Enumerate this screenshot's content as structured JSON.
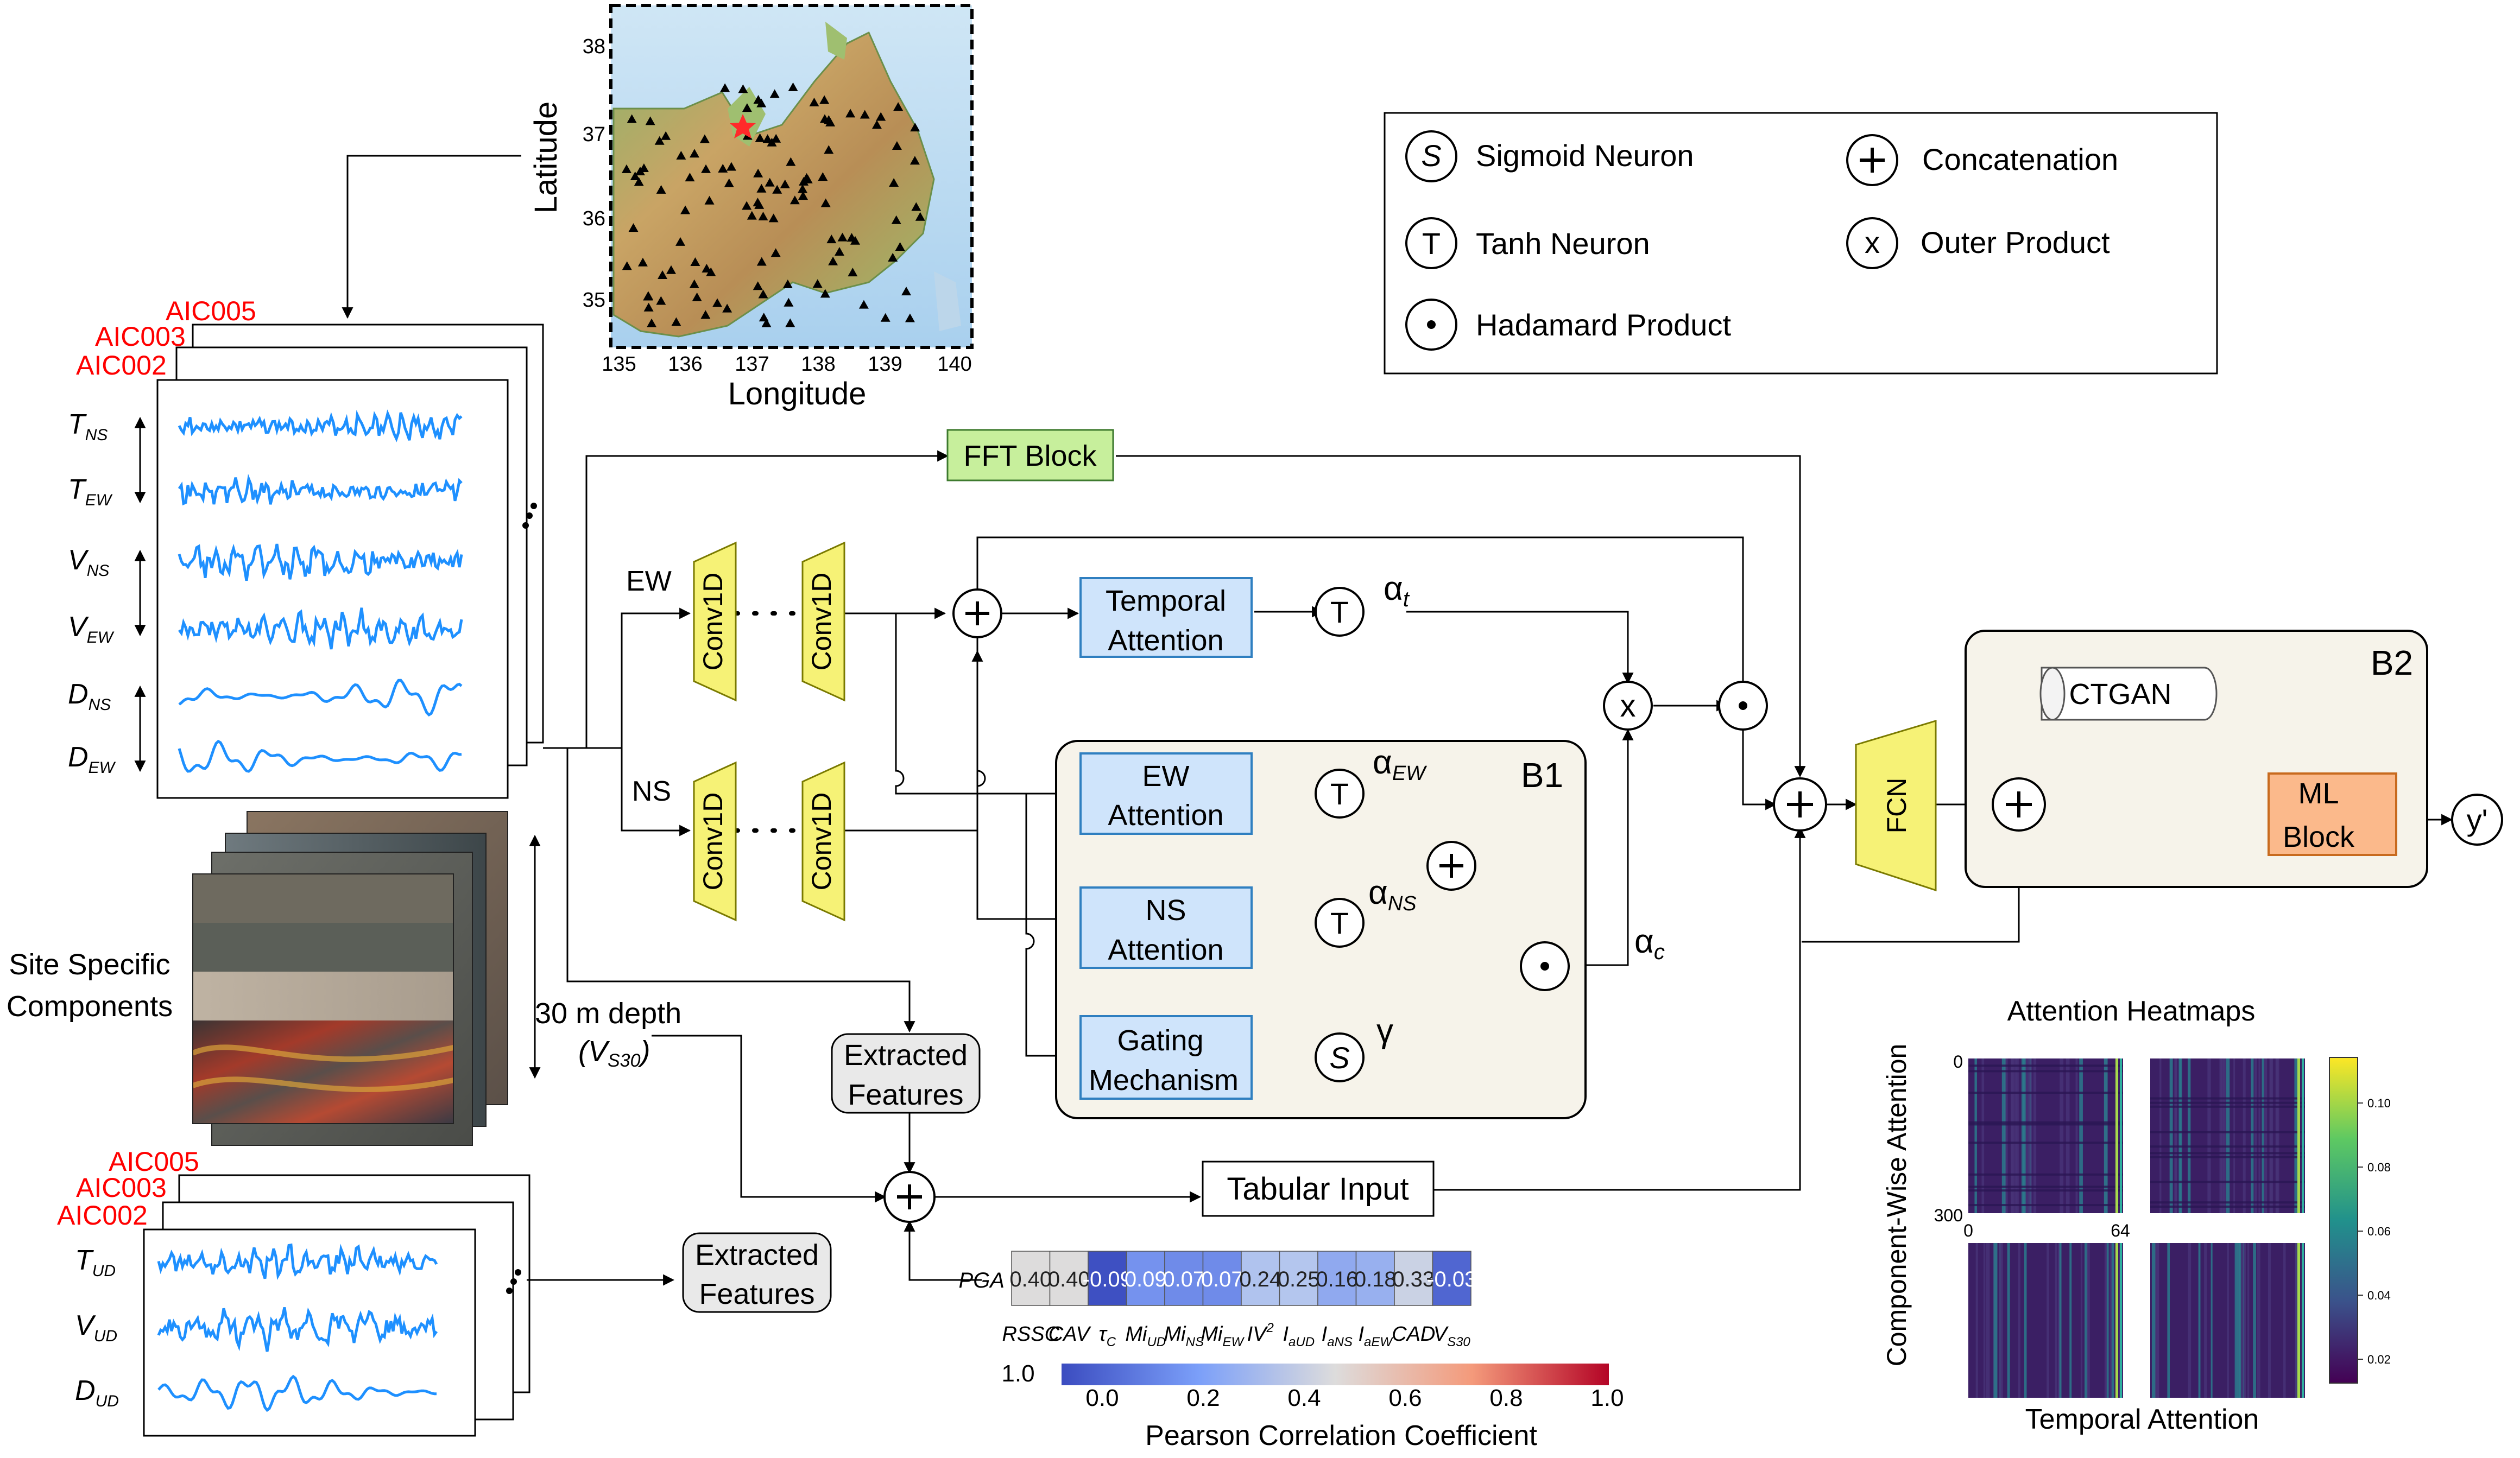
{
  "map": {
    "lat_label": "Latitude",
    "lon_label": "Longitude",
    "lat_ticks": [
      "38",
      "37",
      "36",
      "35"
    ],
    "lon_ticks": [
      "135",
      "136",
      "137",
      "138",
      "139",
      "140"
    ]
  },
  "legend": {
    "sigmoid_symbol": "S",
    "sigmoid": "Sigmoid Neuron",
    "tanh_symbol": "T",
    "tanh": "Tanh Neuron",
    "hadamard": "Hadamard Product",
    "concat": "Concatenation",
    "outer_symbol": "x",
    "outer": "Outer Product"
  },
  "stations_top": [
    "AIC005",
    "AIC003",
    "AIC002"
  ],
  "stations_bottom": [
    "AIC005",
    "AIC003",
    "AIC002"
  ],
  "signals_top": [
    {
      "base": "T",
      "sub": "NS"
    },
    {
      "base": "T",
      "sub": "EW"
    },
    {
      "base": "V",
      "sub": "NS"
    },
    {
      "base": "V",
      "sub": "EW"
    },
    {
      "base": "D",
      "sub": "NS"
    },
    {
      "base": "D",
      "sub": "EW"
    }
  ],
  "signals_bottom": [
    {
      "base": "T",
      "sub": "UD"
    },
    {
      "base": "V",
      "sub": "UD"
    },
    {
      "base": "D",
      "sub": "UD"
    }
  ],
  "site": {
    "line1": "Site Specific",
    "line2": "Components",
    "depth": "30 m depth",
    "vs30_base": "(V",
    "vs30_sub": "S30",
    "vs30_close": ")"
  },
  "arch": {
    "fft": "FFT Block",
    "ew": "EW",
    "ns": "NS",
    "conv": "Conv1D",
    "temporal1": "Temporal",
    "temporal2": "Attention",
    "ew_att1": "EW",
    "ew_att2": "Attention",
    "ns_att1": "NS",
    "ns_att2": "Attention",
    "gating1": "Gating",
    "gating2": "Mechanism",
    "b1": "B1",
    "b2": "B2",
    "alpha": "α",
    "alpha_t_sub": "t",
    "alpha_ew_sub": "EW",
    "alpha_ns_sub": "NS",
    "alpha_c_sub": "c",
    "gamma": "γ",
    "t": "T",
    "s": "S",
    "x": "x",
    "fcn": "FCN",
    "ctgan": "CTGAN",
    "ml1": "ML",
    "ml2": "Block",
    "output": "y'",
    "extracted1": "Extracted",
    "extracted2": "Features",
    "tabular": "Tabular Input"
  },
  "heatmaps": {
    "title": "Attention Heatmaps",
    "ylabel": "Component-Wise Attention",
    "xlabel": "Temporal Attention",
    "tick_y0": "0",
    "tick_y300": "300",
    "tick_x0": "0",
    "tick_x64": "64",
    "colorbar_ticks": [
      "0.10",
      "0.08",
      "0.06",
      "0.04",
      "0.02"
    ]
  },
  "chart_data": {
    "type": "heatmap",
    "row_label": "PGA",
    "categories": [
      {
        "base": "RSSC",
        "sub": ""
      },
      {
        "base": "CAV",
        "sub": ""
      },
      {
        "base": "τ",
        "sub": "C"
      },
      {
        "base": "Mi",
        "sub": "UD"
      },
      {
        "base": "Mi",
        "sub": "NS"
      },
      {
        "base": "Mi",
        "sub": "EW"
      },
      {
        "base": "IV",
        "sup": "2"
      },
      {
        "base": "I",
        "sub": "aUD"
      },
      {
        "base": "I",
        "sub": "aNS"
      },
      {
        "base": "I",
        "sub": "aEW"
      },
      {
        "base": "CAD",
        "sub": ""
      },
      {
        "base": "V",
        "sub": "S30"
      }
    ],
    "values": [
      0.4,
      0.4,
      -0.09,
      0.09,
      0.07,
      0.07,
      0.24,
      0.25,
      0.16,
      0.18,
      0.33,
      -0.03
    ],
    "value_labels": [
      "0.40",
      "0.40",
      "-0.09",
      "0.09",
      "0.07",
      "0.07",
      "0.24",
      "0.25",
      "0.16",
      "0.18",
      "0.33",
      "-0.03"
    ],
    "colorbar": {
      "label": "Pearson Correlation Coefficient",
      "ticks": [
        "0.0",
        "0.2",
        "0.4",
        "0.6",
        "0.8",
        "1.0"
      ],
      "left_label": "1.0"
    }
  },
  "colors": {
    "blue_box": "#cfe4fb",
    "blue_border": "#2f7fc0",
    "green_box": "#c7ef9c",
    "yellow": "#f6f276",
    "orange": "#fbb98b",
    "gray_panel": "#f6f3ea",
    "red_label": "#ff0000",
    "wave": "#1e90ff"
  }
}
